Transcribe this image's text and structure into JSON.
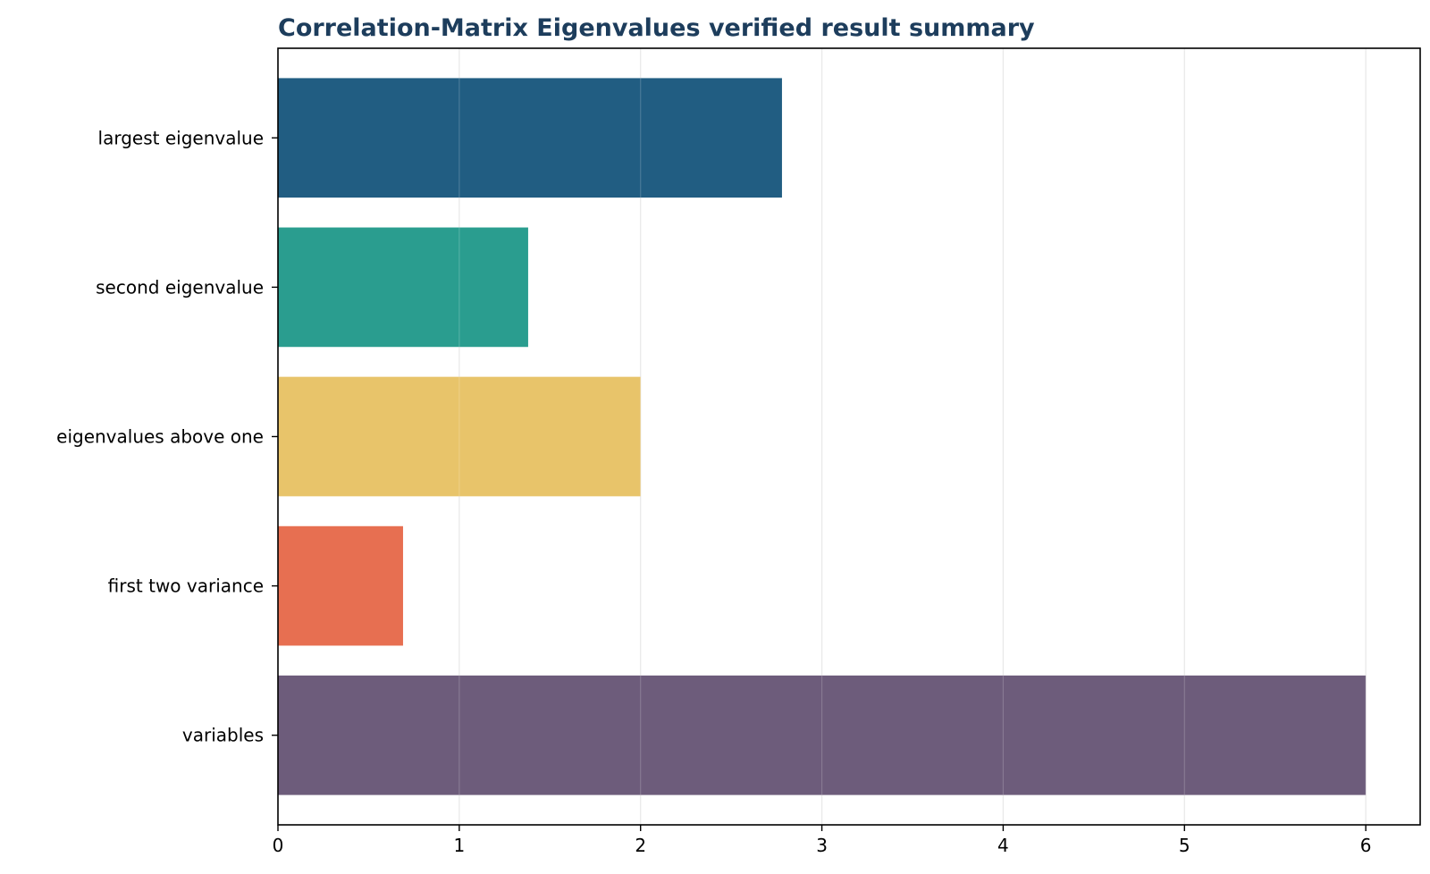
{
  "chart_data": {
    "type": "bar",
    "orientation": "horizontal",
    "title": "Correlation-Matrix Eigenvalues verified result summary",
    "xlabel": "",
    "ylabel": "",
    "categories": [
      "largest eigenvalue",
      "second eigenvalue",
      "eigenvalues above one",
      "first two variance",
      "variables"
    ],
    "values": [
      2.78,
      1.38,
      2.0,
      0.69,
      6.0
    ],
    "colors": [
      "#215d82",
      "#2a9d8f",
      "#e8c46a",
      "#e76f51",
      "#6d5c7b"
    ],
    "xlim": [
      0,
      6.3
    ],
    "xticks": [
      "0",
      "1",
      "2",
      "3",
      "4",
      "5",
      "6"
    ],
    "grid": "vertical",
    "title_color": "#1d3d5c"
  }
}
